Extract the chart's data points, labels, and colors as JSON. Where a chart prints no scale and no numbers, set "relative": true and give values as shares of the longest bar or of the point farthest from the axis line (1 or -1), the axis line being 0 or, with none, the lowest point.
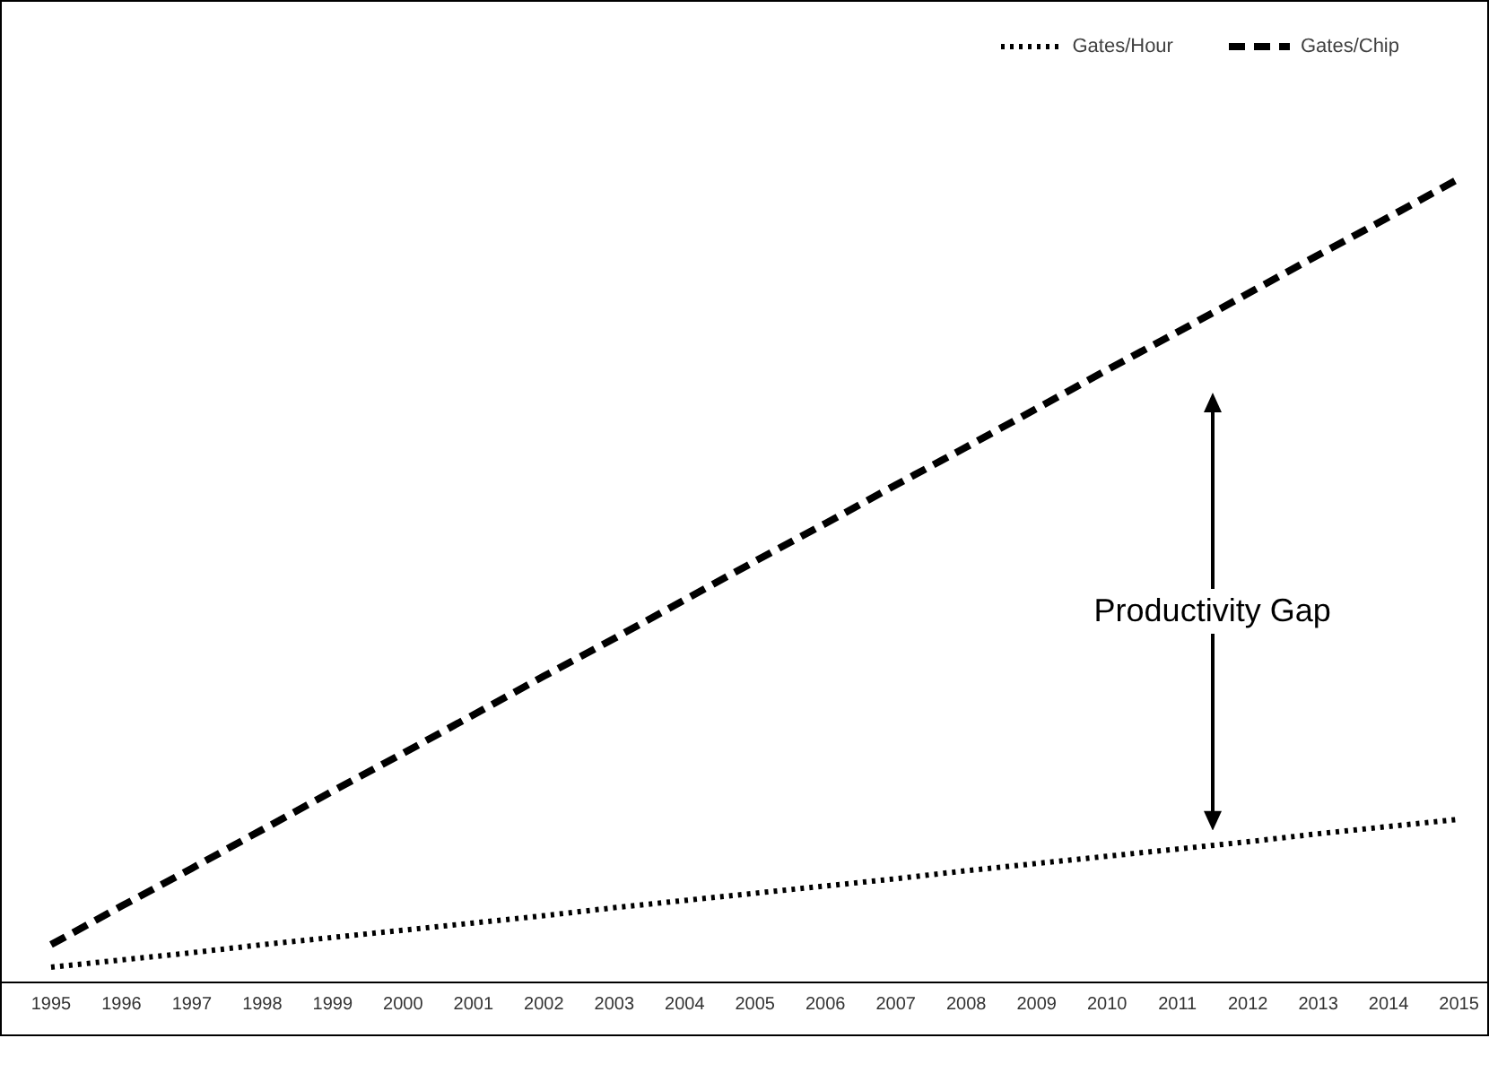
{
  "chart_data": {
    "type": "line",
    "relative": true,
    "x": [
      1995,
      1996,
      1997,
      1998,
      1999,
      2000,
      2001,
      2002,
      2003,
      2004,
      2005,
      2006,
      2007,
      2008,
      2009,
      2010,
      2011,
      2012,
      2013,
      2014,
      2015
    ],
    "xlim": [
      1994.3,
      2015.4
    ],
    "xticks": [
      1995,
      1996,
      1997,
      1998,
      1999,
      2000,
      2001,
      2002,
      2003,
      2004,
      2005,
      2006,
      2007,
      2008,
      2009,
      2010,
      2011,
      2012,
      2013,
      2014,
      2015
    ],
    "series": [
      {
        "name": "Gates/Hour",
        "color": "#000000",
        "line_style": "dotted",
        "values": [
          0.019,
          0.028,
          0.037,
          0.047,
          0.056,
          0.065,
          0.074,
          0.083,
          0.093,
          0.102,
          0.111,
          0.12,
          0.129,
          0.139,
          0.148,
          0.157,
          0.166,
          0.175,
          0.185,
          0.194,
          0.203
        ]
      },
      {
        "name": "Gates/Chip",
        "color": "#000000",
        "line_style": "dashed",
        "values": [
          0.047,
          0.095,
          0.142,
          0.19,
          0.238,
          0.285,
          0.333,
          0.381,
          0.428,
          0.476,
          0.524,
          0.571,
          0.619,
          0.666,
          0.714,
          0.762,
          0.809,
          0.857,
          0.905,
          0.952,
          1.0
        ]
      }
    ],
    "legend": "top right",
    "marker": "none",
    "annotations": [
      "Productivity Gap"
    ]
  }
}
